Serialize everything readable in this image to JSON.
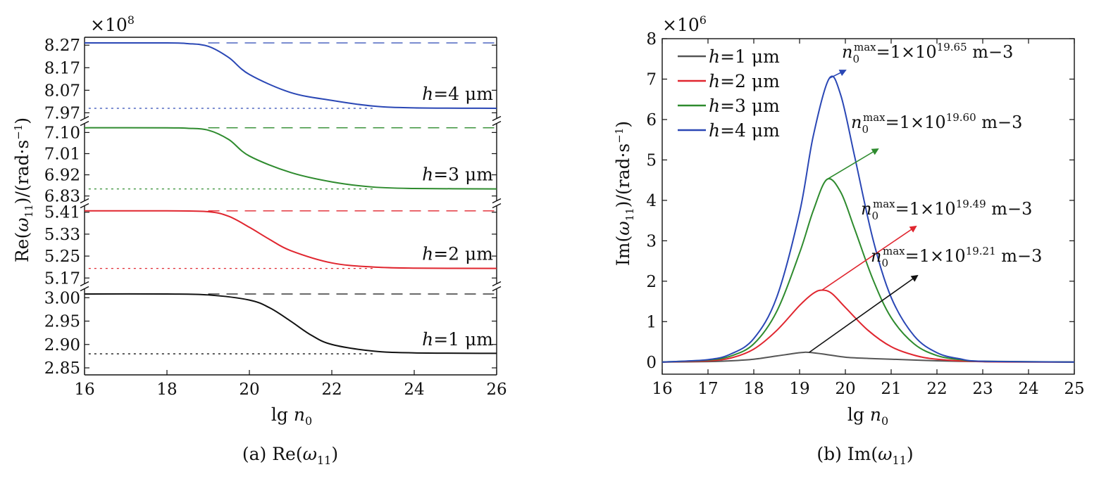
{
  "chart_data": [
    {
      "type": "line",
      "caption": "(a) Re(ω11)",
      "multiplier": "×10^8",
      "xlabel": "lg n0",
      "ylabel": "Re(ω11)/(rad·s−1)",
      "xlim": [
        16,
        26
      ],
      "xticks": [
        "16",
        "18",
        "20",
        "22",
        "24",
        "26"
      ],
      "broken_y_axis": true,
      "panels": [
        {
          "name": "h=4 μm",
          "color": "#2a47b5",
          "ylim": [
            7.94,
            8.305
          ],
          "yticks": [
            "8.27",
            "8.17",
            "8.07",
            "7.97"
          ],
          "ytick_values": [
            8.27,
            8.17,
            8.07,
            7.97
          ],
          "upper_asymptote": 8.28,
          "lower_asymptote": 7.99,
          "x": [
            16,
            18,
            18.5,
            19,
            19.5,
            20,
            21,
            22,
            23,
            24,
            26
          ],
          "y": [
            8.28,
            8.28,
            8.277,
            8.265,
            8.215,
            8.14,
            8.06,
            8.025,
            8.0,
            7.992,
            7.99
          ]
        },
        {
          "name": "h=3 μm",
          "color": "#2e8b2e",
          "ylim": [
            6.805,
            7.14
          ],
          "yticks": [
            "7.10",
            "7.01",
            "6.92",
            "6.83"
          ],
          "ytick_values": [
            7.1,
            7.01,
            6.92,
            6.83
          ],
          "upper_asymptote": 7.12,
          "lower_asymptote": 6.86,
          "x": [
            16,
            18,
            18.5,
            19,
            19.5,
            20,
            21,
            22,
            23,
            24,
            26
          ],
          "y": [
            7.12,
            7.12,
            7.118,
            7.11,
            7.07,
            7.0,
            6.93,
            6.89,
            6.868,
            6.862,
            6.86
          ]
        },
        {
          "name": "h=2 μm",
          "color": "#e0262f",
          "ylim": [
            5.145,
            5.435
          ],
          "yticks": [
            "5.41",
            "5.33",
            "5.25",
            "5.17"
          ],
          "ytick_values": [
            5.41,
            5.33,
            5.25,
            5.17
          ],
          "upper_asymptote": 5.415,
          "lower_asymptote": 5.205,
          "x": [
            16,
            18,
            19,
            19.5,
            20,
            20.5,
            21,
            22,
            23,
            24,
            26
          ],
          "y": [
            5.415,
            5.415,
            5.412,
            5.395,
            5.355,
            5.31,
            5.27,
            5.225,
            5.21,
            5.206,
            5.205
          ]
        },
        {
          "name": "h=1 μm",
          "color": "#111111",
          "ylim": [
            2.835,
            3.02
          ],
          "yticks": [
            "3.00",
            "2.95",
            "2.90",
            "2.85"
          ],
          "ytick_values": [
            3.0,
            2.95,
            2.9,
            2.85
          ],
          "upper_asymptote": 3.008,
          "lower_asymptote": 2.88,
          "x": [
            16,
            18,
            19,
            20,
            20.5,
            21,
            21.5,
            22,
            23,
            24,
            26
          ],
          "y": [
            3.008,
            3.008,
            3.006,
            2.995,
            2.978,
            2.95,
            2.92,
            2.9,
            2.886,
            2.882,
            2.881
          ]
        }
      ]
    },
    {
      "type": "line",
      "caption": "(b) Im(ω11)",
      "multiplier": "×10^6",
      "xlabel": "lg n0",
      "ylabel": "Im(ω11)/(rad·s−1)",
      "xlim": [
        16,
        25
      ],
      "ylim": [
        -0.3,
        8.0
      ],
      "xticks": [
        "16",
        "17",
        "18",
        "19",
        "20",
        "21",
        "22",
        "23",
        "24",
        "25"
      ],
      "yticks": [
        "0",
        "1",
        "2",
        "3",
        "4",
        "5",
        "6",
        "7",
        "8"
      ],
      "legend_position": "top-left",
      "series": [
        {
          "name": "h=1 μm",
          "color": "#555555",
          "x": [
            16,
            17,
            17.5,
            18,
            18.5,
            19,
            19.2,
            19.5,
            20,
            20.5,
            21,
            22,
            23,
            25
          ],
          "y": [
            0,
            0.01,
            0.03,
            0.07,
            0.15,
            0.23,
            0.24,
            0.2,
            0.12,
            0.09,
            0.07,
            0.03,
            0.01,
            0
          ]
        },
        {
          "name": "h=2 μm",
          "color": "#e0262f",
          "x": [
            16,
            17,
            17.5,
            18,
            18.5,
            19,
            19.3,
            19.49,
            19.7,
            20,
            20.5,
            21,
            21.5,
            22,
            23,
            25
          ],
          "y": [
            0,
            0.03,
            0.1,
            0.32,
            0.78,
            1.4,
            1.7,
            1.78,
            1.7,
            1.35,
            0.78,
            0.38,
            0.17,
            0.07,
            0.01,
            0
          ]
        },
        {
          "name": "h=3 μm",
          "color": "#2e8b2e",
          "x": [
            16,
            17,
            17.5,
            18,
            18.5,
            19,
            19.3,
            19.6,
            19.9,
            20.2,
            20.6,
            21,
            21.5,
            22,
            22.5,
            23,
            25
          ],
          "y": [
            0,
            0.05,
            0.15,
            0.45,
            1.25,
            2.7,
            3.75,
            4.52,
            4.2,
            3.3,
            2.05,
            1.1,
            0.45,
            0.16,
            0.06,
            0.02,
            0
          ]
        },
        {
          "name": "h=4 μm",
          "color": "#2a47b5",
          "x": [
            16,
            17,
            17.5,
            18,
            18.5,
            19,
            19.3,
            19.65,
            19.9,
            20.2,
            20.6,
            21,
            21.5,
            22,
            22.5,
            23,
            25
          ],
          "y": [
            0,
            0.06,
            0.2,
            0.58,
            1.6,
            3.7,
            5.6,
            7.02,
            6.6,
            5.1,
            3.05,
            1.6,
            0.65,
            0.23,
            0.08,
            0.02,
            0
          ]
        }
      ],
      "annotations": [
        {
          "n": "n0",
          "sup": "max",
          "value": "=1×10",
          "exp": "19.65",
          "unit": "m−3",
          "color": "#2a47b5",
          "peak": [
            19.65,
            7.02
          ]
        },
        {
          "n": "n0",
          "sup": "max",
          "value": "=1×10",
          "exp": "19.60",
          "unit": "m−3",
          "color": "#2e8b2e",
          "peak": [
            19.6,
            4.52
          ]
        },
        {
          "n": "n0",
          "sup": "max",
          "value": "=1×10",
          "exp": "19.49",
          "unit": "m−3",
          "color": "#e0262f",
          "peak": [
            19.49,
            1.78
          ]
        },
        {
          "n": "n0",
          "sup": "max",
          "value": "=1×10",
          "exp": "19.21",
          "unit": "m−3",
          "color": "#111111",
          "peak": [
            19.21,
            0.24
          ]
        }
      ]
    }
  ]
}
